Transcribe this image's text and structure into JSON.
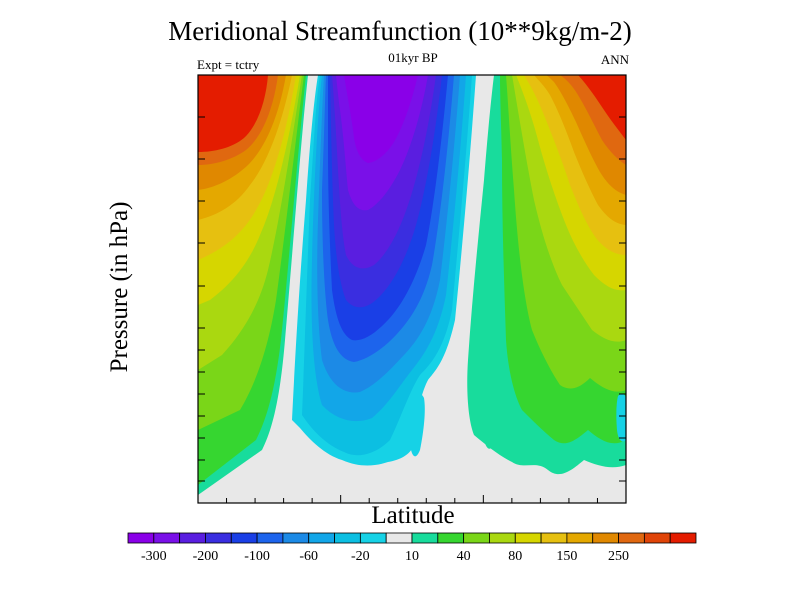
{
  "chart_data": {
    "type": "heatmap",
    "title": "Meridional Streamfunction (10**9kg/m-2)",
    "subtitle": "01kyr BP",
    "left_label": "Expt = tctry",
    "right_label": "ANN",
    "xlabel": "Latitude",
    "ylabel": "Pressure (in hPa)",
    "x_tick_labels": [],
    "y_tick_labels": [],
    "colorbar": {
      "levels": [
        -350,
        -300,
        -250,
        -200,
        -150,
        -100,
        -80,
        -60,
        -40,
        -20,
        -10,
        10,
        20,
        40,
        60,
        80,
        100,
        150,
        200,
        250,
        300
      ],
      "colors": [
        "#8a00e8",
        "#7a10e8",
        "#5a1ee0",
        "#3a2ee0",
        "#1a3fe6",
        "#1d64ec",
        "#1c8ae6",
        "#12a6e8",
        "#0cbfe2",
        "#16d2e6",
        "#e8e8e8",
        "#18dc9c",
        "#36d630",
        "#7ad618",
        "#aad810",
        "#d6d600",
        "#e6c010",
        "#e4a800",
        "#e08800",
        "#e06810",
        "#e04408",
        "#e41c00"
      ],
      "tick_labels": [
        "-300",
        "-200",
        "-100",
        "-60",
        "-20",
        "10",
        "40",
        "80",
        "150",
        "250"
      ]
    }
  }
}
